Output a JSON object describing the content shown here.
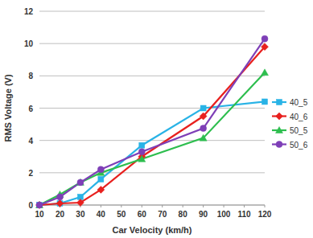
{
  "chart_data": {
    "type": "line",
    "x_label": "Car Velocity (km/h)",
    "y_label": "RMS Voltage (V)",
    "x": [
      10,
      20,
      30,
      40,
      60,
      90,
      120
    ],
    "series": [
      {
        "name": "40_5",
        "color": "#29b3e6",
        "marker": "square",
        "values": [
          0,
          0.1,
          0.5,
          1.6,
          3.7,
          6.0,
          6.4
        ]
      },
      {
        "name": "40_6",
        "color": "#e8201e",
        "marker": "diamond",
        "values": [
          0,
          0.1,
          0.15,
          0.95,
          3.0,
          5.5,
          9.8
        ]
      },
      {
        "name": "50_5",
        "color": "#2dbe4e",
        "marker": "triangle",
        "values": [
          0,
          0.65,
          1.4,
          2.0,
          2.85,
          4.15,
          8.2
        ]
      },
      {
        "name": "50_6",
        "color": "#7e3fb7",
        "marker": "circle",
        "values": [
          0,
          0.5,
          1.4,
          2.2,
          3.3,
          4.75,
          10.3
        ]
      }
    ],
    "xlim": [
      10,
      120
    ],
    "xticks": [
      10,
      20,
      30,
      40,
      50,
      60,
      70,
      80,
      90,
      100,
      110,
      120
    ],
    "ylim": [
      0,
      12
    ],
    "yticks": [
      0,
      2,
      4,
      6,
      8,
      10,
      12
    ],
    "grid": true,
    "legend": "right"
  }
}
